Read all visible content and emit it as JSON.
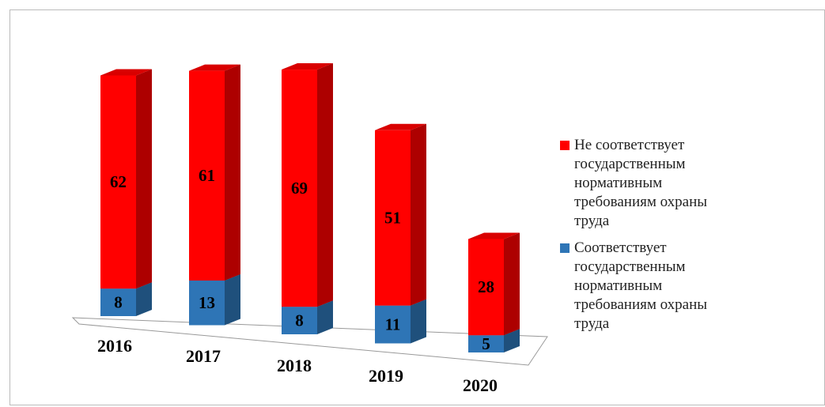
{
  "chart_data": {
    "type": "bar3d_stacked",
    "categories": [
      "2016",
      "2017",
      "2018",
      "2019",
      "2020"
    ],
    "series": [
      {
        "name": "Не соответствует государственным нормативным требованиям охраны труда",
        "color": "#ff0000",
        "values": [
          62,
          61,
          69,
          51,
          28
        ]
      },
      {
        "name": "Соответствует государственным нормативным требованиям охраны труда",
        "color": "#2e75b6",
        "values": [
          8,
          13,
          8,
          11,
          5
        ]
      }
    ],
    "legend": "right"
  }
}
